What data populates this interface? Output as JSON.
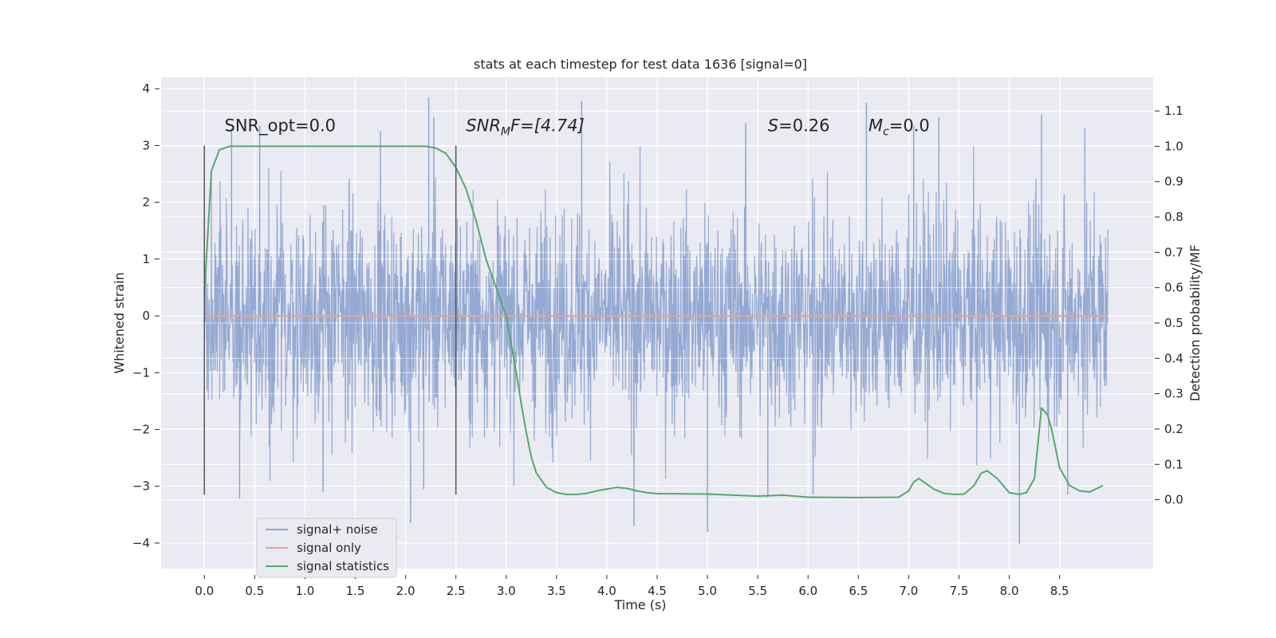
{
  "chart_data": {
    "type": "line",
    "title": "stats at each timestep for test data 1636 [signal=0]",
    "xlabel": "Time (s)",
    "ylabel": "Whitened strain",
    "y2label": "Detection probability/MF",
    "xlim": [
      -0.43,
      9.43
    ],
    "ylim": [
      -4.45,
      4.2
    ],
    "y2lim": [
      -0.195,
      1.195
    ],
    "xticks": [
      0.0,
      0.5,
      1.0,
      1.5,
      2.0,
      2.5,
      3.0,
      3.5,
      4.0,
      4.5,
      5.0,
      5.5,
      6.0,
      6.5,
      7.0,
      7.5,
      8.0,
      8.5
    ],
    "yticks": [
      -4,
      -3,
      -2,
      -1,
      0,
      1,
      2,
      3,
      4
    ],
    "y2ticks": [
      0.0,
      0.1,
      0.2,
      0.3,
      0.4,
      0.5,
      0.6,
      0.7,
      0.8,
      0.9,
      1.0,
      1.1
    ],
    "grid": true,
    "legend_placement": "lower-left",
    "annotations": [
      {
        "text": "SNR_opt=0.0",
        "x": 0.2,
        "y": 3.25
      },
      {
        "base": "SNR",
        "sub": "M",
        "rest": "F=[4.74]",
        "x": 2.6,
        "y": 3.25
      },
      {
        "base": "S",
        "sub": "",
        "rest": "=0.26",
        "x": 5.6,
        "y": 3.25
      },
      {
        "base": "M",
        "sub": "c",
        "rest": "=0.0",
        "x": 6.6,
        "y": 3.25
      }
    ],
    "vlines": [
      {
        "x": 0.0,
        "y0": -3.15,
        "y1": 3.0
      },
      {
        "x": 2.5,
        "y0": -3.15,
        "y1": 3.0
      }
    ],
    "series": [
      {
        "name": "signal+ noise",
        "axis": "left",
        "color": "#8fa5d1",
        "x_start": 0.0,
        "x_end": 8.98,
        "noise_std": 0.95,
        "spikes": [
          {
            "x": 0.27,
            "y": 3.3
          },
          {
            "x": 0.35,
            "y": -3.22
          },
          {
            "x": 0.55,
            "y": 3.35
          },
          {
            "x": 1.18,
            "y": -3.1
          },
          {
            "x": 1.75,
            "y": 3.25
          },
          {
            "x": 2.05,
            "y": -3.65
          },
          {
            "x": 2.18,
            "y": -3.05
          },
          {
            "x": 2.23,
            "y": 3.85
          },
          {
            "x": 2.28,
            "y": 3.5
          },
          {
            "x": 3.75,
            "y": 3.78
          },
          {
            "x": 4.27,
            "y": -3.7
          },
          {
            "x": 5.0,
            "y": -3.8
          },
          {
            "x": 5.38,
            "y": 3.4
          },
          {
            "x": 5.6,
            "y": -3.2
          },
          {
            "x": 6.05,
            "y": -3.15
          },
          {
            "x": 6.58,
            "y": 3.75
          },
          {
            "x": 7.05,
            "y": 3.35
          },
          {
            "x": 7.3,
            "y": 3.5
          },
          {
            "x": 8.1,
            "y": -4.02
          },
          {
            "x": 8.32,
            "y": 3.55
          },
          {
            "x": 8.58,
            "y": -3.15
          },
          {
            "x": 8.75,
            "y": 3.3
          }
        ]
      },
      {
        "name": "signal only",
        "axis": "left",
        "color": "#e6a48b",
        "x": [
          0.0,
          8.98
        ],
        "y": [
          0.0,
          0.0
        ]
      },
      {
        "name": "signal statistics",
        "axis": "right",
        "color": "#55a868",
        "x": [
          0.0,
          0.07,
          0.15,
          0.25,
          0.5,
          1.0,
          1.5,
          2.0,
          2.2,
          2.3,
          2.4,
          2.5,
          2.6,
          2.7,
          2.8,
          2.9,
          3.0,
          3.05,
          3.1,
          3.15,
          3.2,
          3.25,
          3.3,
          3.4,
          3.5,
          3.6,
          3.7,
          3.8,
          3.9,
          4.0,
          4.1,
          4.2,
          4.3,
          4.4,
          4.5,
          5.0,
          5.5,
          5.75,
          6.0,
          6.5,
          6.9,
          7.0,
          7.05,
          7.1,
          7.15,
          7.25,
          7.35,
          7.45,
          7.55,
          7.65,
          7.72,
          7.78,
          7.88,
          8.0,
          8.1,
          8.17,
          8.25,
          8.32,
          8.38,
          8.42,
          8.5,
          8.6,
          8.7,
          8.8,
          8.93
        ],
        "y": [
          0.58,
          0.93,
          0.99,
          1.0,
          1.0,
          1.0,
          1.0,
          1.0,
          1.0,
          0.995,
          0.98,
          0.94,
          0.88,
          0.79,
          0.68,
          0.6,
          0.52,
          0.44,
          0.36,
          0.27,
          0.19,
          0.12,
          0.075,
          0.035,
          0.02,
          0.015,
          0.015,
          0.018,
          0.025,
          0.03,
          0.035,
          0.032,
          0.025,
          0.02,
          0.017,
          0.016,
          0.01,
          0.013,
          0.007,
          0.006,
          0.007,
          0.025,
          0.05,
          0.06,
          0.05,
          0.03,
          0.018,
          0.015,
          0.016,
          0.04,
          0.075,
          0.082,
          0.06,
          0.02,
          0.015,
          0.02,
          0.06,
          0.26,
          0.24,
          0.2,
          0.09,
          0.04,
          0.025,
          0.022,
          0.04
        ]
      }
    ]
  }
}
